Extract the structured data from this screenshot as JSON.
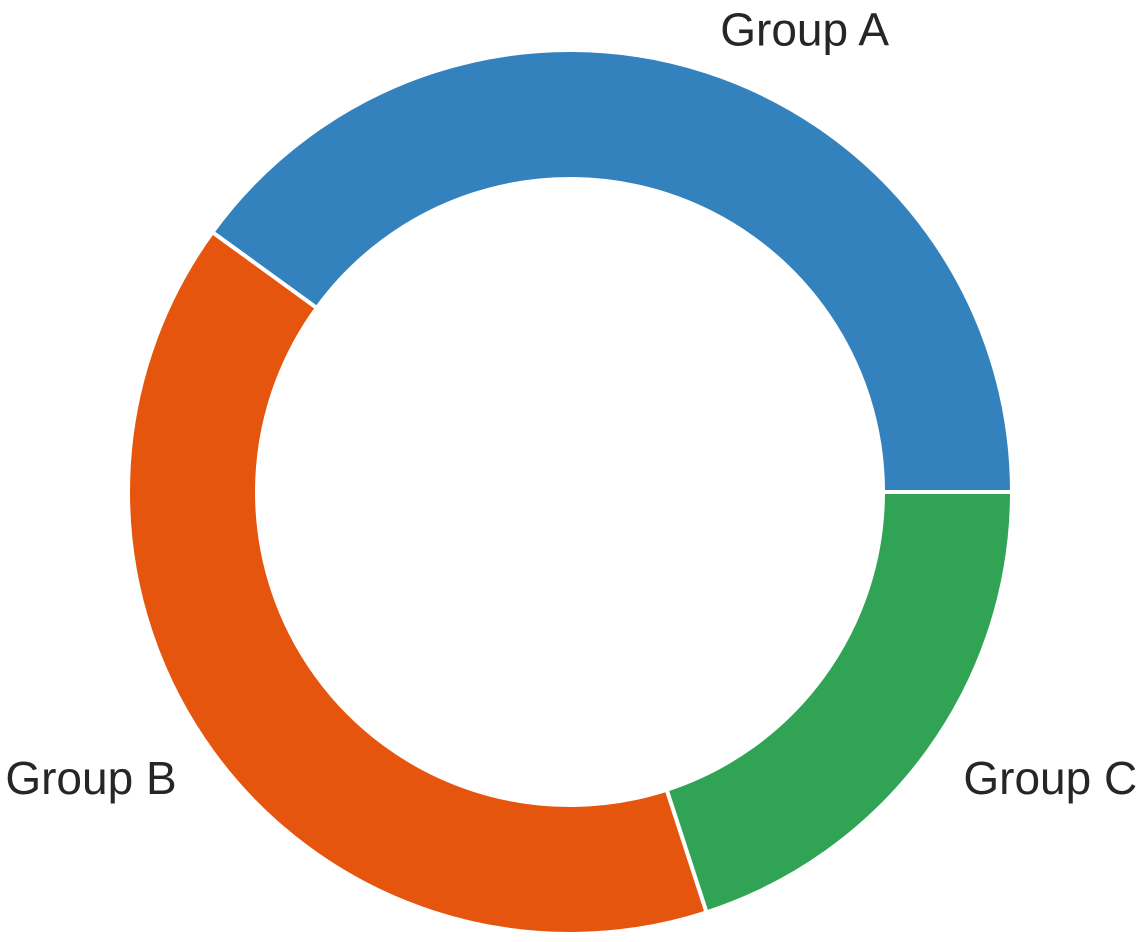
{
  "chart_data": {
    "type": "pie",
    "donut": true,
    "title": "",
    "start_angle_deg": 0,
    "direction": "counterclockwise",
    "slices": [
      {
        "label": "Group A",
        "value": 40,
        "color": "#3482bd"
      },
      {
        "label": "Group B",
        "value": 40,
        "color": "#e6550d"
      },
      {
        "label": "Group C",
        "value": 20,
        "color": "#31a354"
      }
    ],
    "edge_color": "#ffffff"
  }
}
